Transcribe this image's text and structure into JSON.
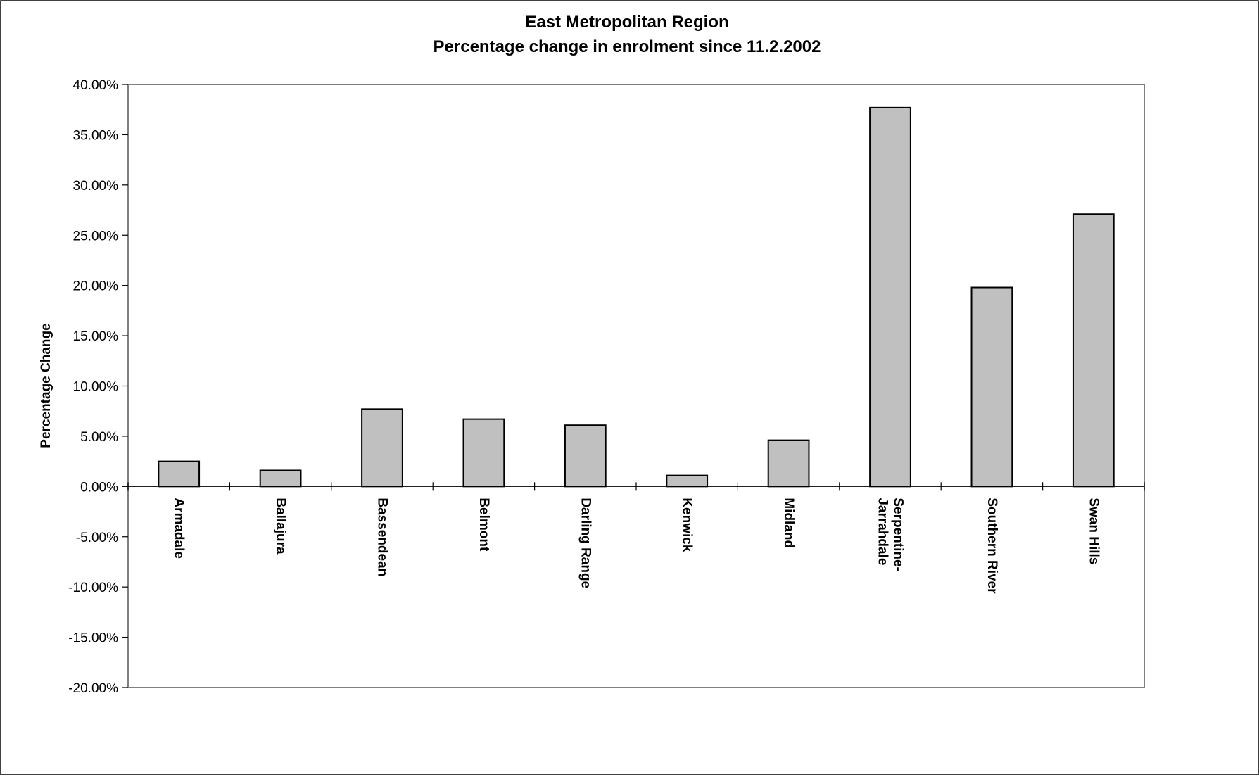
{
  "chart_data": {
    "type": "bar",
    "title": "East Metropolitan Region",
    "subtitle": "Percentage change in enrolment since 11.2.2002",
    "xlabel": "",
    "ylabel": "Percentage Change",
    "ylim": [
      -20,
      40
    ],
    "yticks": [
      40,
      35,
      30,
      25,
      20,
      15,
      10,
      5,
      0,
      -5,
      -10,
      -15,
      -20
    ],
    "ytick_labels": [
      "40.00%",
      "35.00%",
      "30.00%",
      "25.00%",
      "20.00%",
      "15.00%",
      "10.00%",
      "5.00%",
      "0.00%",
      "-5.00%",
      "-10.00%",
      "-15.00%",
      "-20.00%"
    ],
    "categories": [
      [
        "Armadale"
      ],
      [
        "Ballajura"
      ],
      [
        "Bassendean"
      ],
      [
        "Belmont"
      ],
      [
        "Darling Range"
      ],
      [
        "Kenwick"
      ],
      [
        "Midland"
      ],
      [
        "Serpentine-",
        "Jarrahdale"
      ],
      [
        "Southern River"
      ],
      [
        "Swan Hills"
      ]
    ],
    "values": [
      2.5,
      1.6,
      7.7,
      6.7,
      6.1,
      1.1,
      4.6,
      37.7,
      19.8,
      27.1
    ],
    "grid": false,
    "legend": "none",
    "colors": {
      "bar_fill": "#c0c0c0",
      "bar_stroke": "#000000",
      "plot_border": "#808080",
      "axis": "#000000"
    }
  }
}
